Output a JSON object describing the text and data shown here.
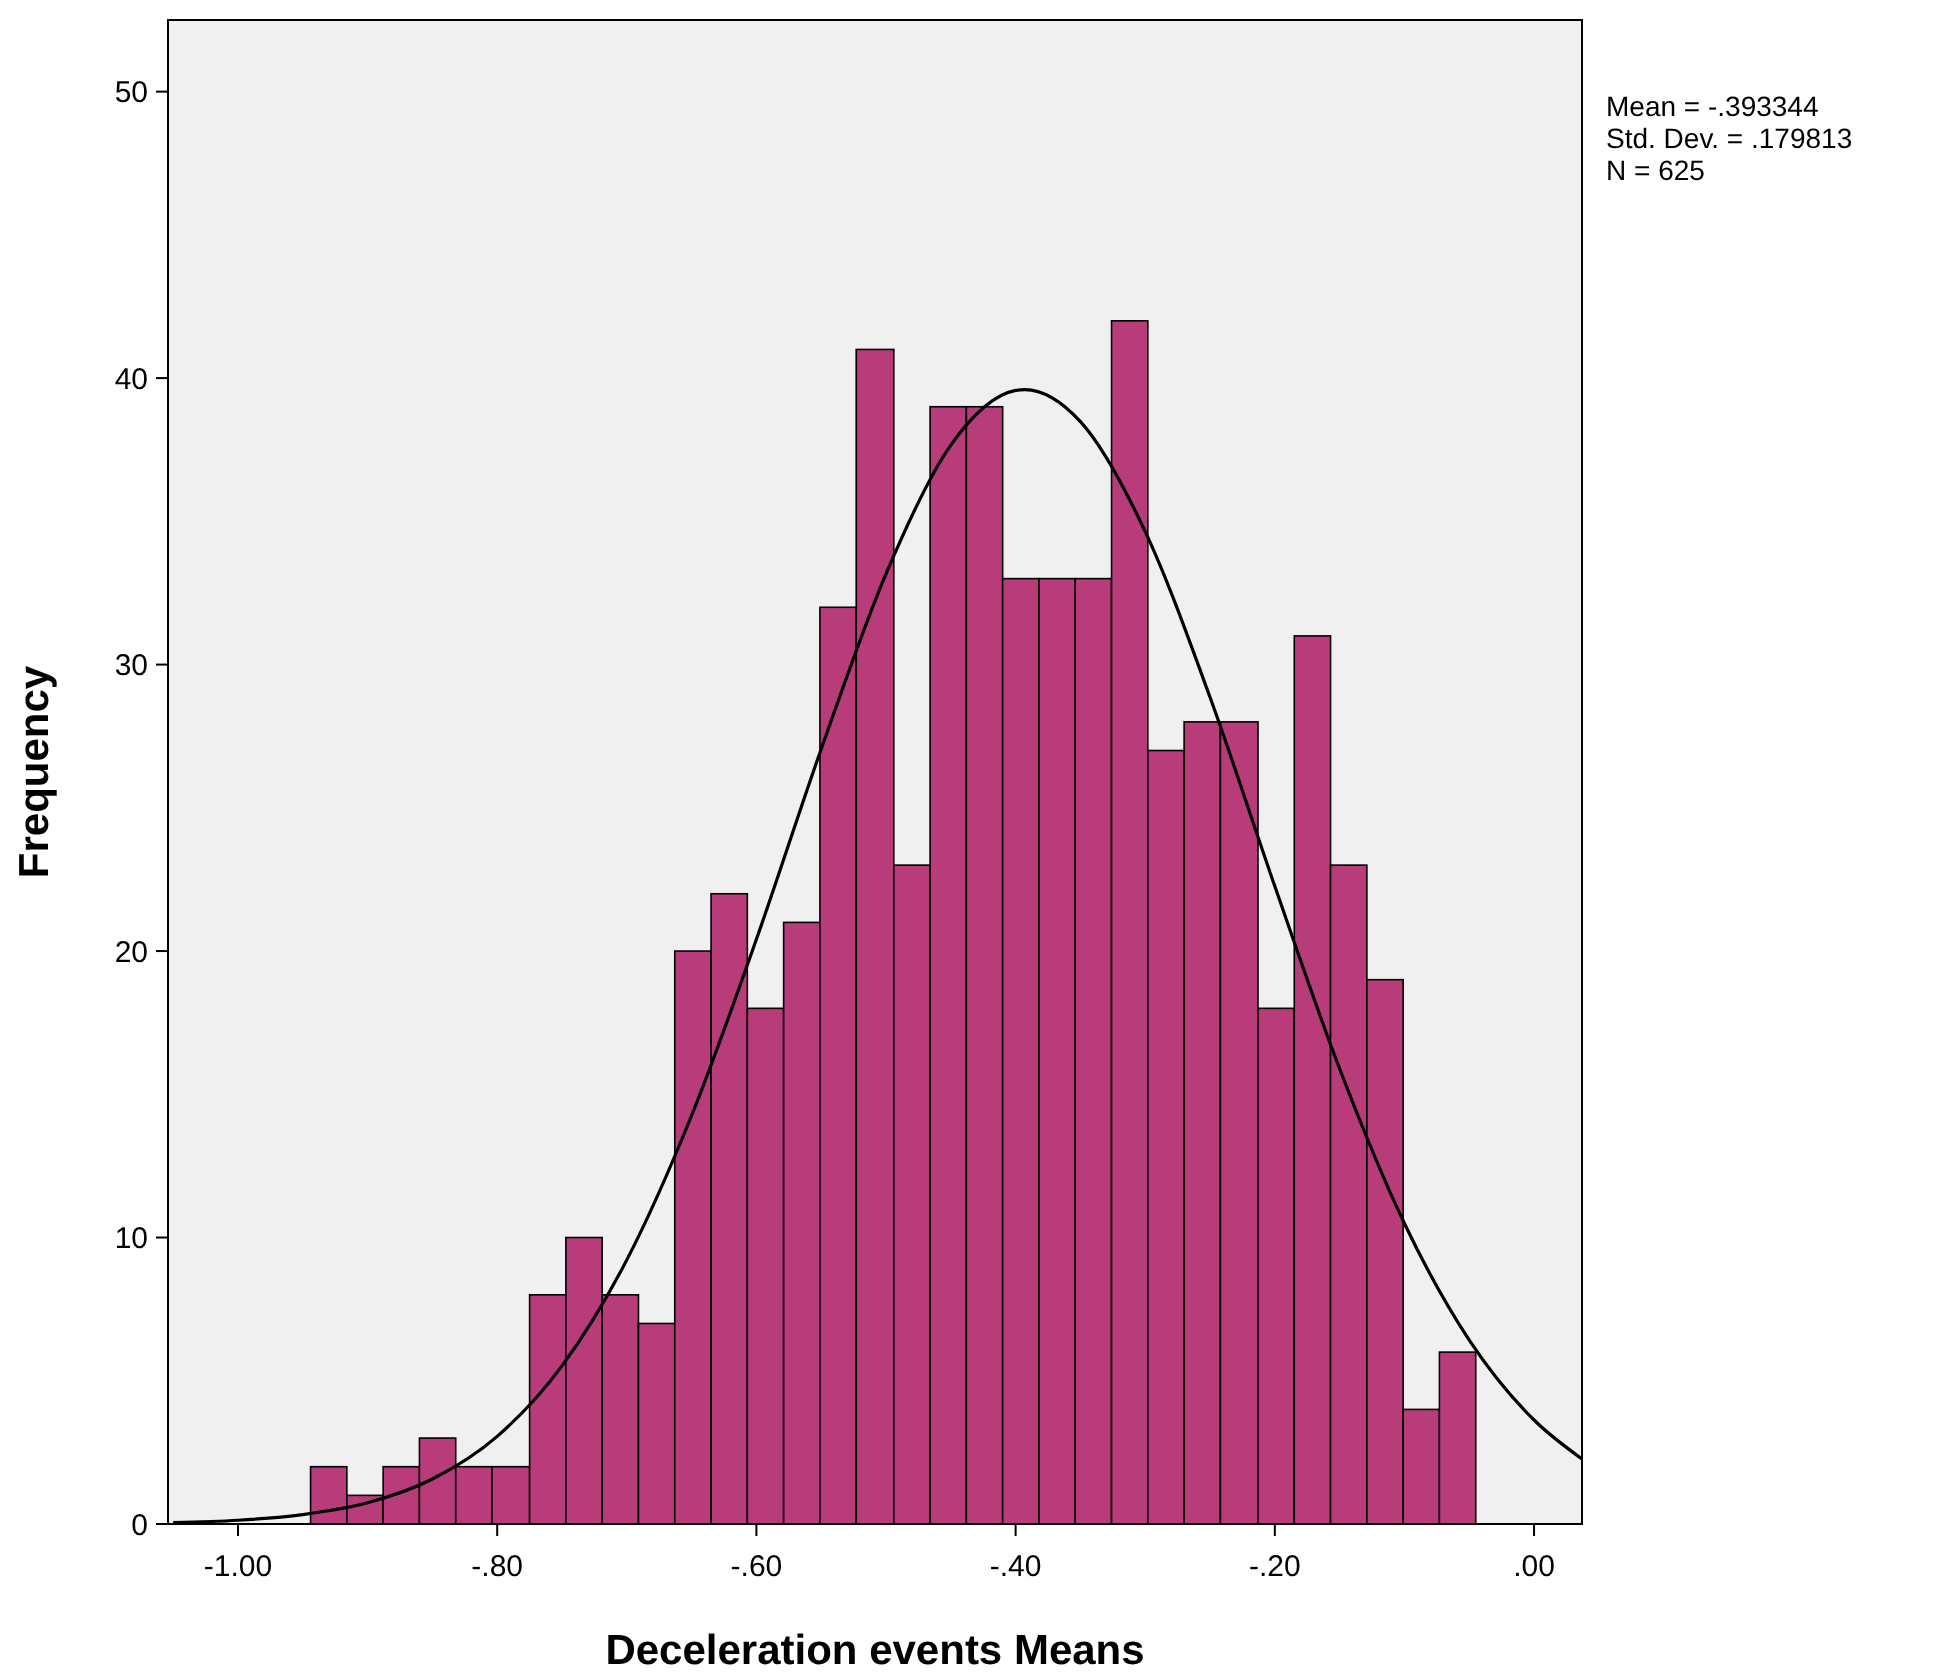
{
  "chart_data": {
    "type": "histogram",
    "xlabel": "Deceleration events Means",
    "ylabel": "Frequency",
    "annotations": [
      "Mean = -.393344",
      "Std. Dev. = .179813",
      "N = 625"
    ],
    "xlim": [
      -1.054,
      0.037
    ],
    "ylim": [
      0,
      52.5
    ],
    "xticks": [
      {
        "value": -1,
        "label": "-1.00"
      },
      {
        "value": -0.8,
        "label": "-.80"
      },
      {
        "value": -0.6,
        "label": "-.60"
      },
      {
        "value": -0.4,
        "label": "-.40"
      },
      {
        "value": -0.2,
        "label": "-.20"
      },
      {
        "value": 0,
        "label": ".00"
      }
    ],
    "yticks": [
      0,
      10,
      20,
      30,
      40,
      50
    ],
    "grid": false,
    "series": [
      {
        "color": "#b83c7a",
        "bins": [
          -0.944,
          -0.916,
          -0.888,
          -0.86,
          -0.832,
          -0.804,
          -0.775,
          -0.747,
          -0.719,
          -0.691,
          -0.663,
          -0.635,
          -0.607,
          -0.579,
          -0.551,
          -0.523,
          -0.494,
          -0.466,
          -0.438,
          -0.41,
          -0.382,
          -0.354,
          -0.326,
          -0.298,
          -0.27,
          -0.242,
          -0.213,
          -0.185,
          -0.157,
          -0.129,
          -0.101,
          -0.073,
          -0.045
        ],
        "values": [
          2,
          1,
          2,
          3,
          2,
          2,
          8,
          10,
          8,
          7,
          20,
          22,
          18,
          21,
          32,
          41,
          23,
          39,
          39,
          33,
          33,
          33,
          42,
          27,
          28,
          28,
          18,
          31,
          23,
          19,
          4,
          6
        ]
      },
      {
        "type": "line",
        "color": "#000000",
        "x": [
          -1.05,
          -1.0,
          -0.95,
          -0.9,
          -0.85,
          -0.8,
          -0.75,
          -0.7,
          -0.65,
          -0.6,
          -0.55,
          -0.5,
          -0.45,
          -0.4,
          -0.393,
          -0.35,
          -0.3,
          -0.25,
          -0.2,
          -0.15,
          -0.1,
          -0.05,
          0.0,
          0.037
        ],
        "values": [
          0.05,
          0.13,
          0.33,
          0.74,
          1.57,
          3.06,
          5.52,
          9.22,
          14.26,
          20.41,
          27.05,
          33.17,
          37.66,
          39.57,
          39.6,
          38.48,
          34.64,
          28.86,
          22.26,
          15.89,
          10.49,
          6.42,
          3.63,
          2.27
        ]
      }
    ]
  }
}
